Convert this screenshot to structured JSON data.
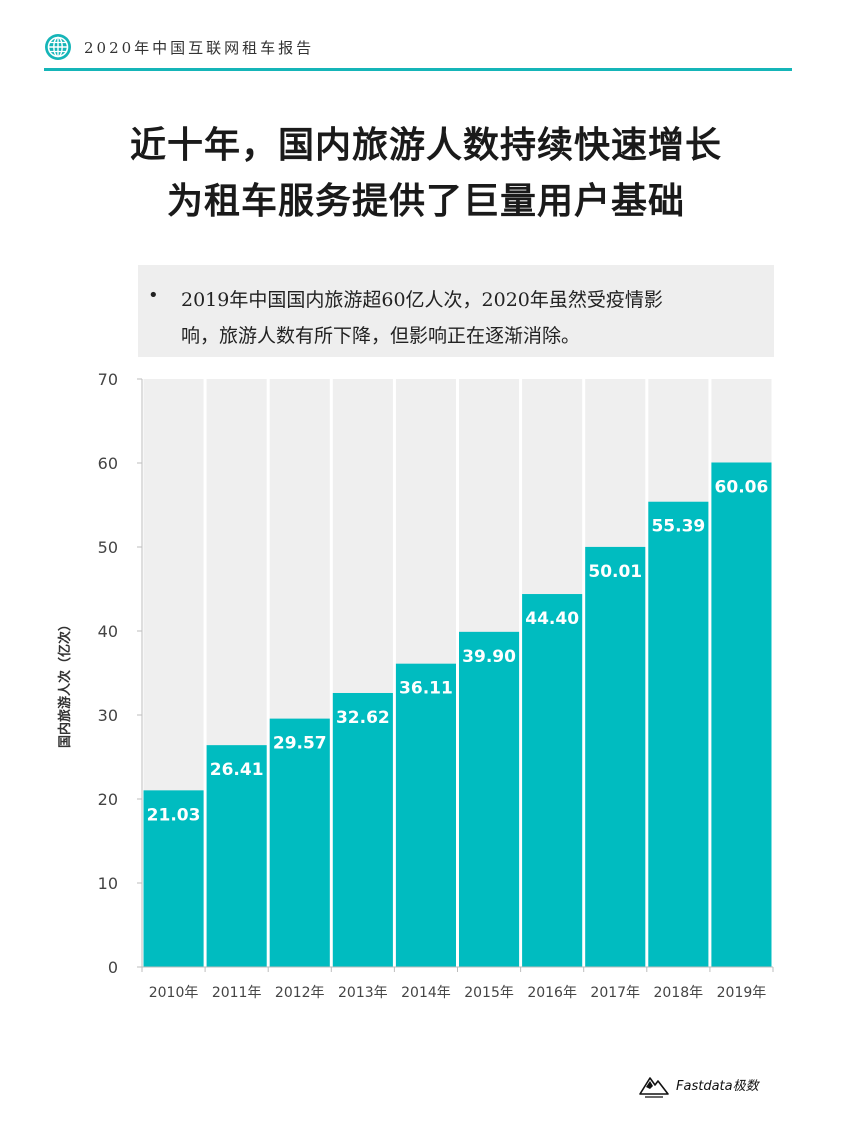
{
  "header": {
    "report_title": "2020年中国互联网租车报告",
    "icon": "globe-icon"
  },
  "title": {
    "line1": "近十年，国内旅游人数持续快速增长",
    "line2": "为租车服务提供了巨量用户基础"
  },
  "note": {
    "bullet": "•",
    "line1": "2019年中国国内旅游超60亿人次，2020年虽然受疫情影",
    "line2": "响，旅游人数有所下降，但影响正在逐渐消除。"
  },
  "colors": {
    "accent": "#15b5b8",
    "bar": "#00bcc0",
    "plot_background": "#efefef"
  },
  "chart_data": {
    "type": "bar",
    "categories": [
      "2010年",
      "2011年",
      "2012年",
      "2013年",
      "2014年",
      "2015年",
      "2016年",
      "2017年",
      "2018年",
      "2019年"
    ],
    "values": [
      21.03,
      26.41,
      29.57,
      32.62,
      36.11,
      39.9,
      44.4,
      50.01,
      55.39,
      60.06
    ],
    "value_labels": [
      "21.03",
      "26.41",
      "29.57",
      "32.62",
      "36.11",
      "39.90",
      "44.40",
      "50.01",
      "55.39",
      "60.06"
    ],
    "yticks": [
      "0",
      "10",
      "20",
      "30",
      "40",
      "50",
      "60",
      "70"
    ],
    "ylabel": "国内旅游人次（亿次）",
    "xlabel": "",
    "ylim": [
      0,
      70
    ],
    "grid": false,
    "legend": "none"
  },
  "footer": {
    "logo_text": "Fastdata极数",
    "logo_icon": "mountain-logo-icon"
  }
}
